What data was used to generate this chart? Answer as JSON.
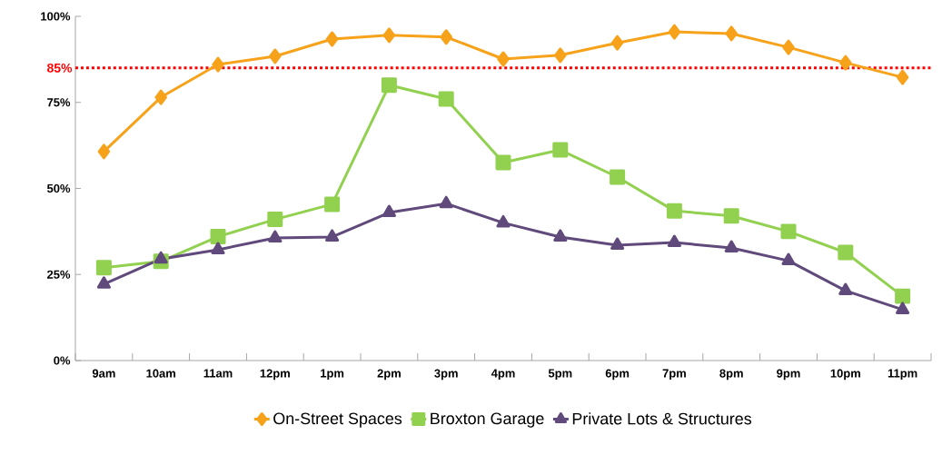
{
  "chart_data": {
    "type": "line",
    "categories": [
      "9am",
      "10am",
      "11am",
      "12pm",
      "1pm",
      "2pm",
      "3pm",
      "4pm",
      "5pm",
      "6pm",
      "7pm",
      "8pm",
      "9pm",
      "10pm",
      "11pm"
    ],
    "series": [
      {
        "name": "On-Street Spaces",
        "color": "#f7a21b",
        "marker": "diamond",
        "values": [
          60.7,
          76.5,
          86,
          88.4,
          93.4,
          94.5,
          94,
          87.6,
          88.7,
          92.3,
          95.5,
          95,
          91,
          86.5,
          82.3
        ]
      },
      {
        "name": "Broxton Garage",
        "color": "#92d050",
        "marker": "square",
        "values": [
          27,
          28.8,
          36,
          41,
          45.4,
          80,
          76,
          57.5,
          61.2,
          53.3,
          43.5,
          42,
          37.5,
          31.4,
          18.7
        ]
      },
      {
        "name": "Private Lots & Structures",
        "color": "#604a7b",
        "marker": "triangle",
        "values": [
          22.2,
          29.5,
          32.2,
          35.6,
          35.9,
          43,
          45.6,
          40,
          35.9,
          33.5,
          34.3,
          32.7,
          29,
          20.3,
          14.8
        ]
      }
    ],
    "ylim": [
      0,
      100
    ],
    "yticks": [
      {
        "value": 0,
        "label": "0%"
      },
      {
        "value": 25,
        "label": "25%"
      },
      {
        "value": 50,
        "label": "50%"
      },
      {
        "value": 75,
        "label": "75%"
      },
      {
        "value": 100,
        "label": "100%"
      }
    ],
    "ref_lines": [
      {
        "axis": "y",
        "value": 85,
        "label": "85%",
        "color": "#ff0000",
        "line_style": "dashed"
      }
    ],
    "grid": false,
    "legend": "bottom",
    "line_style": "solid"
  }
}
